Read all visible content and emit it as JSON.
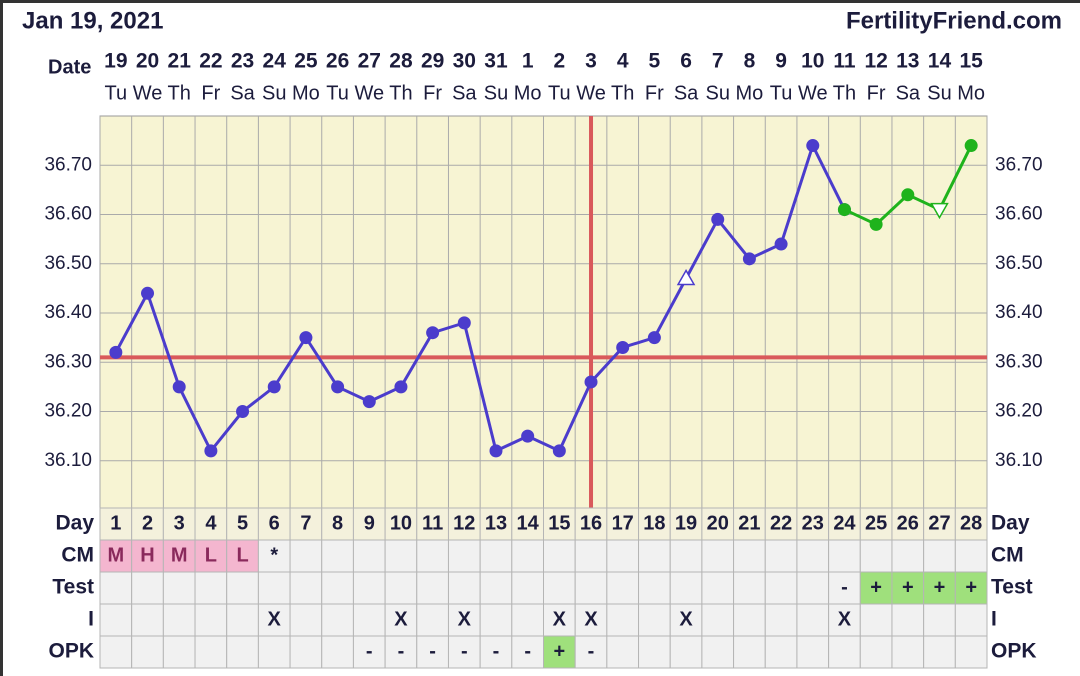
{
  "header": {
    "date": "Jan 19, 2021",
    "site": "FertilityFriend.com"
  },
  "chart_data": {
    "type": "line",
    "x_label": "Date",
    "dates": [
      "19",
      "20",
      "21",
      "22",
      "23",
      "24",
      "25",
      "26",
      "27",
      "28",
      "29",
      "30",
      "31",
      "1",
      "2",
      "3",
      "4",
      "5",
      "6",
      "7",
      "8",
      "9",
      "10",
      "11",
      "12",
      "13",
      "14",
      "15"
    ],
    "weekdays": [
      "Tu",
      "We",
      "Th",
      "Fr",
      "Sa",
      "Su",
      "Mo",
      "Tu",
      "We",
      "Th",
      "Fr",
      "Sa",
      "Su",
      "Mo",
      "Tu",
      "We",
      "Th",
      "Fr",
      "Sa",
      "Su",
      "Mo",
      "Tu",
      "We",
      "Th",
      "Fr",
      "Sa",
      "Su",
      "Mo"
    ],
    "days": [
      1,
      2,
      3,
      4,
      5,
      6,
      7,
      8,
      9,
      10,
      11,
      12,
      13,
      14,
      15,
      16,
      17,
      18,
      19,
      20,
      21,
      22,
      23,
      24,
      25,
      26,
      27,
      28
    ],
    "ylim": [
      36.0,
      36.8
    ],
    "yticks": [
      {
        "value": 36.1,
        "label": "36.10"
      },
      {
        "value": 36.2,
        "label": "36.20"
      },
      {
        "value": 36.3,
        "label": "36.30"
      },
      {
        "value": 36.4,
        "label": "36.40"
      },
      {
        "value": 36.5,
        "label": "36.50"
      },
      {
        "value": 36.6,
        "label": "36.60"
      },
      {
        "value": 36.7,
        "label": "36.70"
      }
    ],
    "grid": true,
    "series": [
      {
        "color": "#4b3ccc",
        "values": [
          36.32,
          36.44,
          36.25,
          36.12,
          36.2,
          36.25,
          36.35,
          36.25,
          36.22,
          36.25,
          36.36,
          36.38,
          36.12,
          36.15,
          36.12,
          36.26,
          36.33,
          36.35,
          36.47,
          36.59,
          36.51,
          36.54,
          36.74,
          36.61,
          null,
          null,
          null,
          null
        ],
        "markers": [
          "circle",
          "circle",
          "circle",
          "circle",
          "circle",
          "circle",
          "circle",
          "circle",
          "circle",
          "circle",
          "circle",
          "circle",
          "circle",
          "circle",
          "circle",
          "circle",
          "circle",
          "circle",
          "triangle-up",
          "circle",
          "circle",
          "circle",
          "circle",
          "circle",
          null,
          null,
          null,
          null
        ]
      },
      {
        "color": "#1fb31c",
        "values": [
          null,
          null,
          null,
          null,
          null,
          null,
          null,
          null,
          null,
          null,
          null,
          null,
          null,
          null,
          null,
          null,
          null,
          null,
          null,
          null,
          null,
          null,
          null,
          36.61,
          36.58,
          36.64,
          36.61,
          36.74
        ],
        "markers": [
          null,
          null,
          null,
          null,
          null,
          null,
          null,
          null,
          null,
          null,
          null,
          null,
          null,
          null,
          null,
          null,
          null,
          null,
          null,
          null,
          null,
          null,
          null,
          "circle",
          "circle",
          "circle",
          "triangle-down",
          "circle"
        ]
      }
    ],
    "coverline": 36.31,
    "ovulation_day": 16,
    "line_color": "#d9595b"
  },
  "table": {
    "row_labels": [
      "Day",
      "CM",
      "Test",
      "I",
      "OPK"
    ],
    "rows": [
      {
        "cells": [
          "M",
          "H",
          "M",
          "L",
          "L",
          "*",
          null,
          null,
          null,
          null,
          null,
          null,
          null,
          null,
          null,
          null,
          null,
          null,
          null,
          null,
          null,
          null,
          null,
          null,
          null,
          null,
          null,
          null
        ],
        "colors": [
          "#f4b6cf",
          "#f4b6cf",
          "#f4b6cf",
          "#f4b6cf",
          "#f4b6cf",
          null,
          null,
          null,
          null,
          null,
          null,
          null,
          null,
          null,
          null,
          null,
          null,
          null,
          null,
          null,
          null,
          null,
          null,
          null,
          null,
          null,
          null,
          null
        ],
        "text_color": "#8a2a5c"
      },
      {
        "cells": [
          null,
          null,
          null,
          null,
          null,
          null,
          null,
          null,
          null,
          null,
          null,
          null,
          null,
          null,
          null,
          null,
          null,
          null,
          null,
          null,
          null,
          null,
          null,
          "-",
          "+",
          "+",
          "+",
          "+"
        ],
        "colors": [
          null,
          null,
          null,
          null,
          null,
          null,
          null,
          null,
          null,
          null,
          null,
          null,
          null,
          null,
          null,
          null,
          null,
          null,
          null,
          null,
          null,
          null,
          null,
          null,
          "#9fe07c",
          "#9fe07c",
          "#9fe07c",
          "#9fe07c"
        ]
      },
      {
        "cells": [
          null,
          null,
          null,
          null,
          null,
          "X",
          null,
          null,
          null,
          "X",
          null,
          "X",
          null,
          null,
          "X",
          "X",
          null,
          null,
          "X",
          null,
          null,
          null,
          null,
          "X",
          null,
          null,
          null,
          null
        ]
      },
      {
        "cells": [
          null,
          null,
          null,
          null,
          null,
          null,
          null,
          null,
          "-",
          "-",
          "-",
          "-",
          "-",
          "-",
          "+",
          "-",
          null,
          null,
          null,
          null,
          null,
          null,
          null,
          null,
          null,
          null,
          null,
          null
        ],
        "colors": [
          null,
          null,
          null,
          null,
          null,
          null,
          null,
          null,
          null,
          null,
          null,
          null,
          null,
          null,
          "#9fe07c",
          null,
          null,
          null,
          null,
          null,
          null,
          null,
          null,
          null,
          null,
          null,
          null,
          null
        ]
      }
    ]
  }
}
